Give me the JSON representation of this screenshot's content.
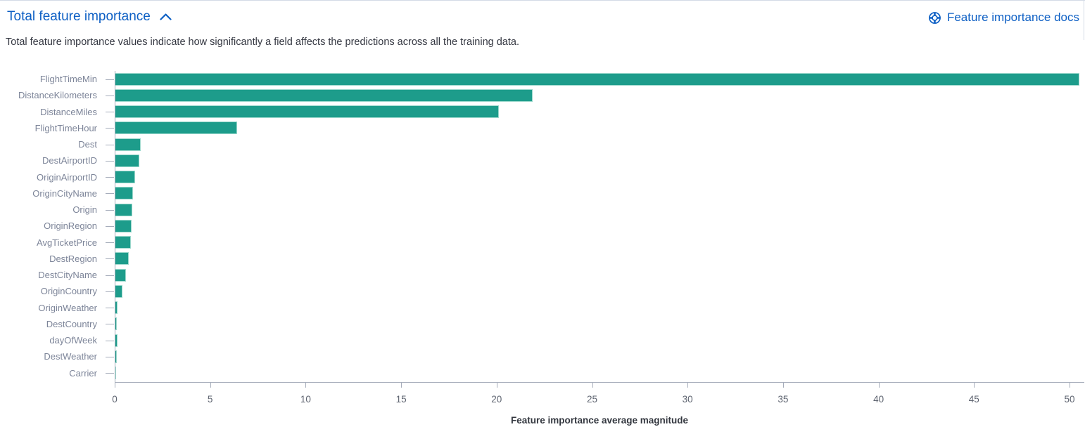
{
  "header": {
    "title": "Total feature importance",
    "docs_link_label": "Feature importance docs"
  },
  "icons": {
    "collapse": "chevron-up",
    "docs": "lifebuoy-help"
  },
  "description": "Total feature importance values indicate how significantly a field affects the predictions across all the training data.",
  "colors": {
    "link_blue": "#0d5fc4",
    "bar_teal": "#1d9c8b",
    "axis_line": "#a6adbb",
    "category_label": "#7d8599",
    "tick_label": "#5e6470",
    "body_text": "#343741"
  },
  "chart_data": {
    "type": "bar",
    "orientation": "horizontal",
    "title": "Total feature importance",
    "xlabel": "Feature importance average magnitude",
    "ylabel": "",
    "categories": [
      "FlightTimeMin",
      "DistanceKilometers",
      "DistanceMiles",
      "FlightTimeHour",
      "Dest",
      "DestAirportID",
      "OriginAirportID",
      "OriginCityName",
      "Origin",
      "OriginRegion",
      "AvgTicketPrice",
      "DestRegion",
      "DestCityName",
      "OriginCountry",
      "OriginWeather",
      "DestCountry",
      "dayOfWeek",
      "DestWeather",
      "Carrier"
    ],
    "values": [
      50.5,
      21.9,
      20.1,
      6.4,
      1.35,
      1.28,
      1.07,
      0.97,
      0.91,
      0.87,
      0.83,
      0.73,
      0.6,
      0.4,
      0.15,
      0.12,
      0.15,
      0.11,
      0.07
    ],
    "x_ticks": [
      0,
      5,
      10,
      15,
      20,
      25,
      30,
      35,
      40,
      45,
      50
    ],
    "xlim": [
      0,
      50.77
    ],
    "grid": false,
    "legend": false
  }
}
